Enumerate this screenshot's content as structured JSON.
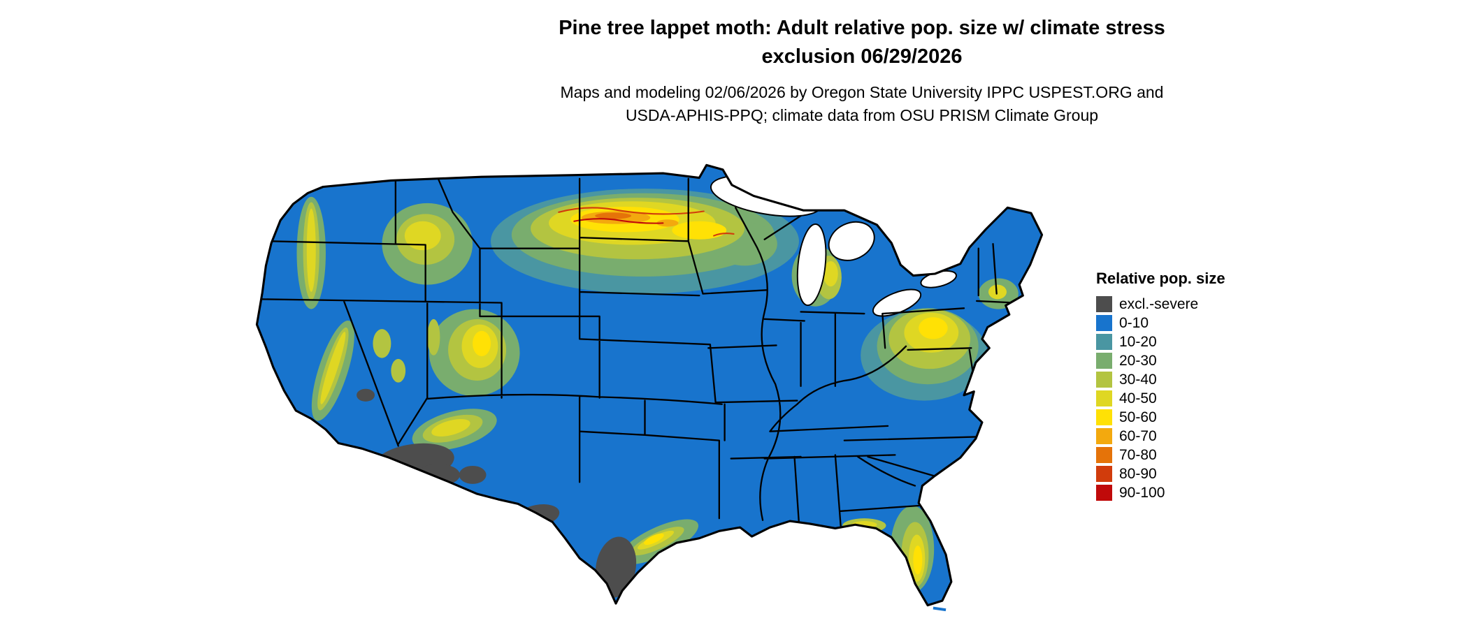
{
  "title": {
    "line1": "Pine tree lappet moth: Adult relative pop. size w/ climate stress",
    "line2": "exclusion 06/29/2026"
  },
  "subtitle": {
    "line1": "Maps and modeling 02/06/2026 by Oregon State University IPPC USPEST.ORG and",
    "line2": "USDA-APHIS-PPQ; climate data from OSU PRISM Climate Group"
  },
  "legend": {
    "title": "Relative pop. size",
    "items": [
      {
        "label": "excl.-severe",
        "color": "#4d4d4d"
      },
      {
        "label": "0-10",
        "color": "#1874cd"
      },
      {
        "label": "10-20",
        "color": "#4a96a2"
      },
      {
        "label": "20-30",
        "color": "#79ad6e"
      },
      {
        "label": "30-40",
        "color": "#b3c441"
      },
      {
        "label": "40-50",
        "color": "#dfd723"
      },
      {
        "label": "50-60",
        "color": "#ffe105"
      },
      {
        "label": "60-70",
        "color": "#f3a90e"
      },
      {
        "label": "70-80",
        "color": "#e57309"
      },
      {
        "label": "80-90",
        "color": "#d13c0c"
      },
      {
        "label": "90-100",
        "color": "#c00a0a"
      }
    ]
  },
  "map": {
    "region": "Continental United States",
    "water_color": "#ffffff",
    "boundary_color": "#000000"
  }
}
